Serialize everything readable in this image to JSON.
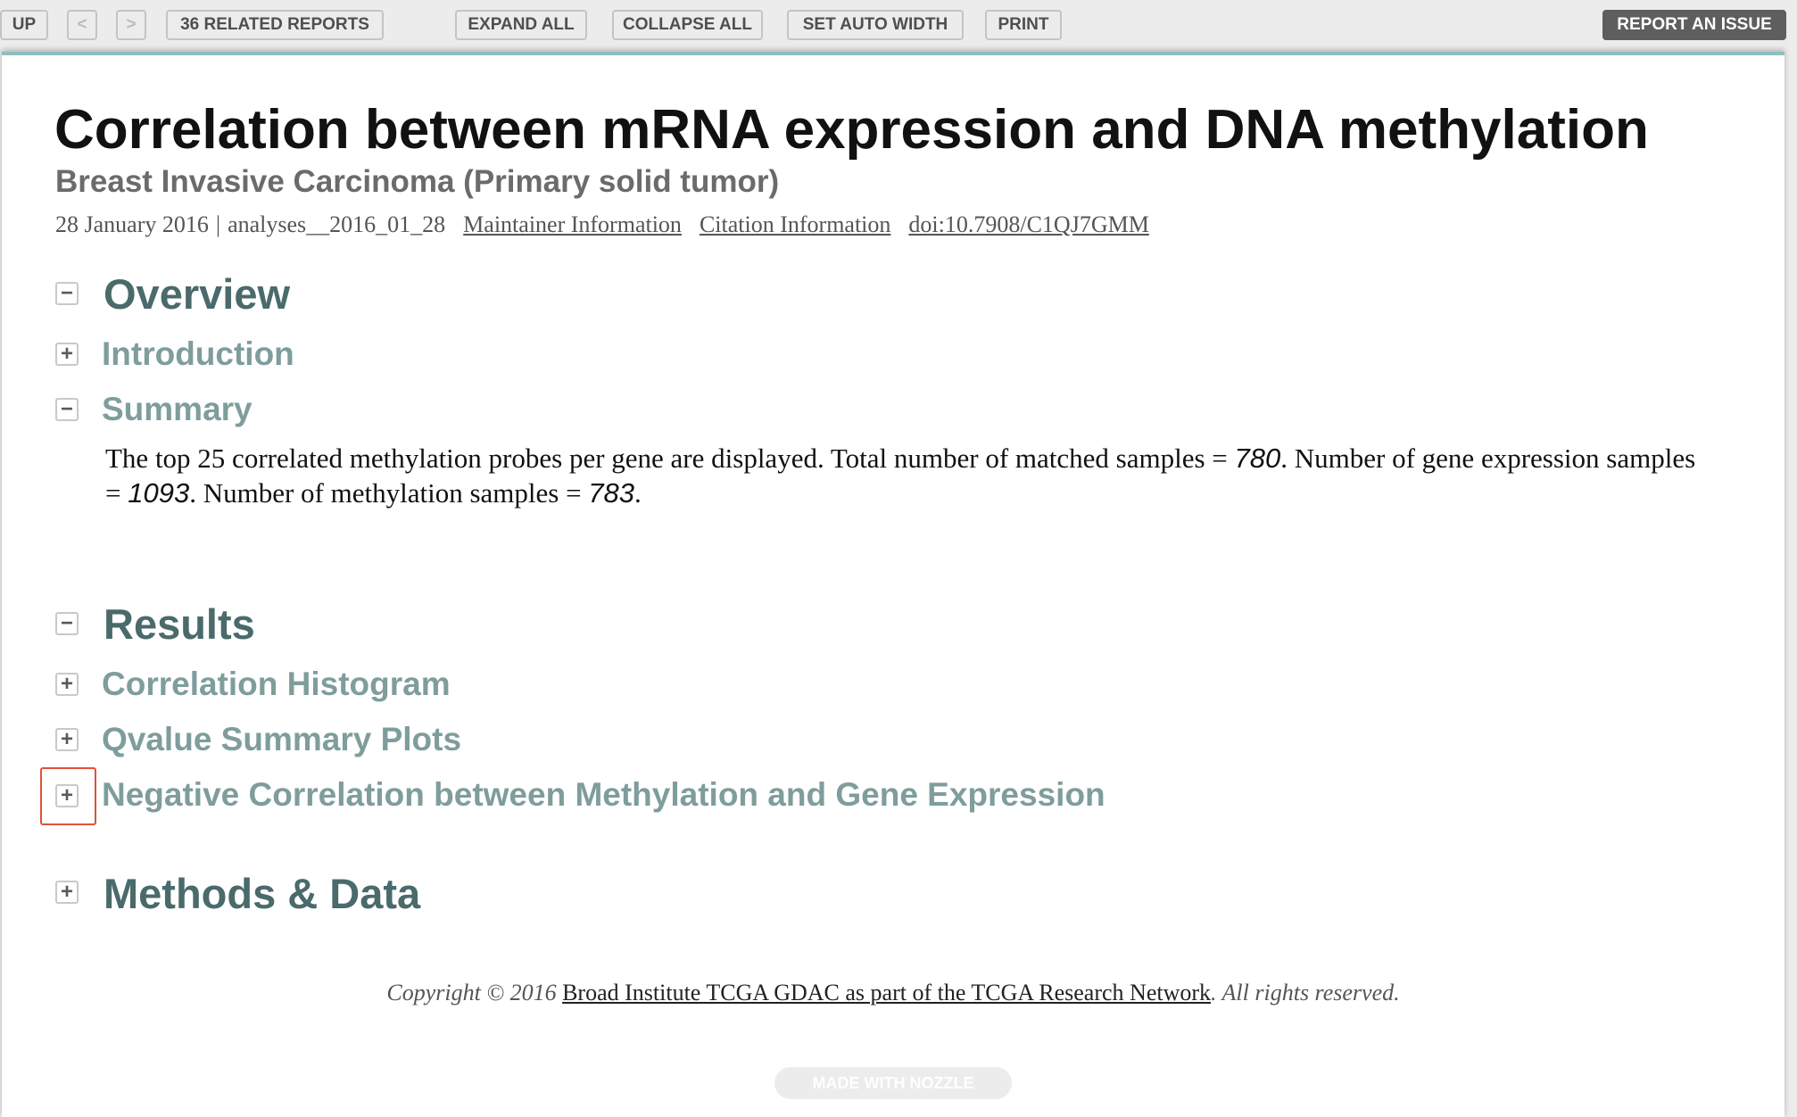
{
  "toolbar": {
    "up": "UP",
    "prev": "<",
    "next": ">",
    "related": "36 RELATED REPORTS",
    "expand_all": "EXPAND ALL",
    "collapse_all": "COLLAPSE ALL",
    "set_auto_width": "SET AUTO WIDTH",
    "print": "PRINT",
    "report_issue": "REPORT AN ISSUE"
  },
  "header": {
    "title": "Correlation between mRNA expression and DNA methylation",
    "subtitle": "Breast Invasive Carcinoma (Primary solid tumor)",
    "date": "28 January 2016",
    "separator": "|",
    "analysis_id": "analyses__2016_01_28",
    "maintainer_link": "Maintainer Information",
    "citation_link": "Citation Information",
    "doi_link": "doi:10.7908/C1QJ7GMM"
  },
  "overview": {
    "heading": "Overview",
    "toggle": "−",
    "introduction": {
      "label": "Introduction",
      "toggle": "+"
    },
    "summary": {
      "label": "Summary",
      "toggle": "−",
      "text_1": "The top 25 correlated methylation probes per gene are displayed. Total number of matched samples = ",
      "matched_samples": "780",
      "text_2": ". Number of gene expression samples = ",
      "gene_expression_samples": "1093",
      "text_3": ". Number of methylation samples = ",
      "methylation_samples": "783",
      "text_4": "."
    }
  },
  "results": {
    "heading": "Results",
    "toggle": "−",
    "items": [
      {
        "label": "Correlation Histogram",
        "toggle": "+"
      },
      {
        "label": "Qvalue Summary Plots",
        "toggle": "+"
      },
      {
        "label": "Negative Correlation between Methylation and Gene Expression",
        "toggle": "+"
      }
    ]
  },
  "methods": {
    "heading": "Methods & Data",
    "toggle": "+"
  },
  "footer": {
    "prefix": "Copyright © 2016 ",
    "link": "Broad Institute TCGA GDAC as part of the TCGA Research Network",
    "suffix": ". All rights reserved.",
    "badge": "MADE WITH NOZZLE"
  },
  "colors": {
    "accent_border": "#8fbfbd",
    "section_heading": "#4a6a6b",
    "subsection_heading": "#7e9d9c",
    "highlight_box": "#e0513a"
  }
}
